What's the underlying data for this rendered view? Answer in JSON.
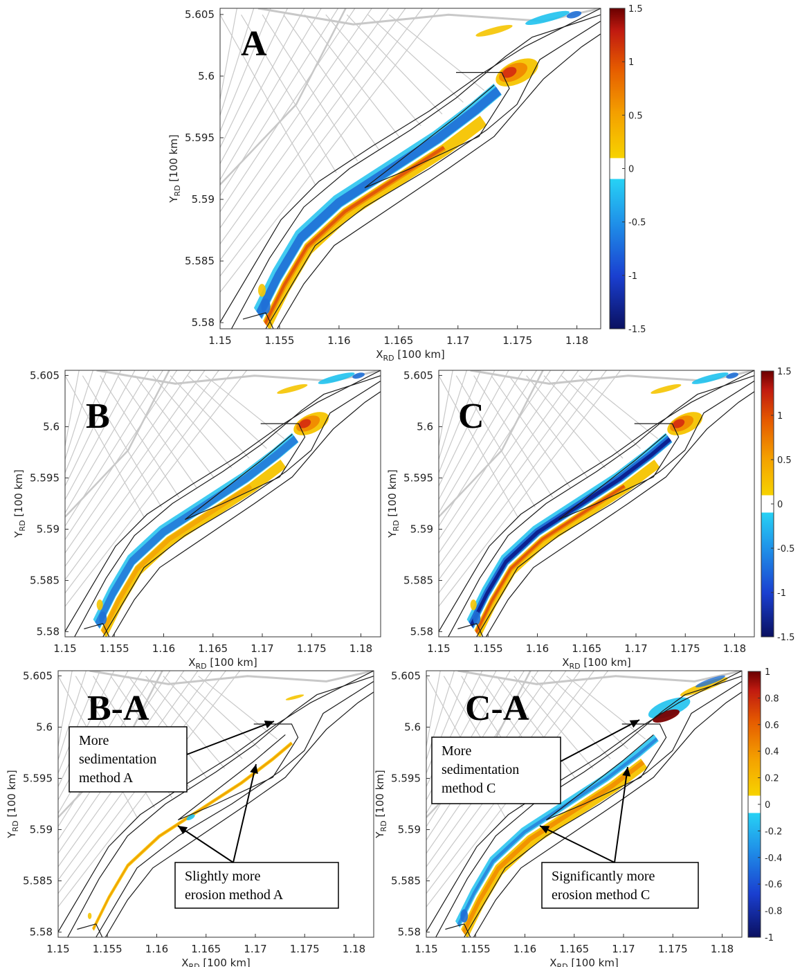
{
  "chart_data": [
    {
      "type": "heatmap",
      "panel_label": "A",
      "xlabel": "X",
      "xlabel_sub": "RD",
      "xlabel_unit": " [100 km]",
      "ylabel": "Y",
      "ylabel_sub": "RD",
      "ylabel_unit": " [100 km]",
      "xlim": [
        1.15,
        1.182
      ],
      "ylim": [
        5.5795,
        5.6055
      ],
      "xticks": [
        "1.15",
        "1.155",
        "1.16",
        "1.165",
        "1.17",
        "1.175",
        "1.18"
      ],
      "yticks": [
        "5.58",
        "5.585",
        "5.59",
        "5.595",
        "5.6",
        "5.605"
      ],
      "colorbar": {
        "min": -1.5,
        "max": 1.5,
        "ticks": [
          "-1.5",
          "-1",
          "-0.5",
          "0",
          "0.5",
          "1",
          "1.5"
        ]
      },
      "annotations": []
    },
    {
      "type": "heatmap",
      "panel_label": "B",
      "xlabel": "X",
      "xlabel_sub": "RD",
      "xlabel_unit": " [100 km]",
      "ylabel": "Y",
      "ylabel_sub": "RD",
      "ylabel_unit": " [100 km]",
      "xlim": [
        1.15,
        1.182
      ],
      "ylim": [
        5.5795,
        5.6055
      ],
      "xticks": [
        "1.15",
        "1.155",
        "1.16",
        "1.165",
        "1.17",
        "1.175",
        "1.18"
      ],
      "yticks": [
        "5.58",
        "5.585",
        "5.59",
        "5.595",
        "5.6",
        "5.605"
      ],
      "annotations": []
    },
    {
      "type": "heatmap",
      "panel_label": "C",
      "xlabel": "X",
      "xlabel_sub": "RD",
      "xlabel_unit": " [100 km]",
      "ylabel": "Y",
      "ylabel_sub": "RD",
      "ylabel_unit": " [100 km]",
      "xlim": [
        1.15,
        1.182
      ],
      "ylim": [
        5.5795,
        5.6055
      ],
      "xticks": [
        "1.15",
        "1.155",
        "1.16",
        "1.165",
        "1.17",
        "1.175",
        "1.18"
      ],
      "yticks": [
        "5.58",
        "5.585",
        "5.59",
        "5.595",
        "5.6",
        "5.605"
      ],
      "colorbar": {
        "min": -1.5,
        "max": 1.5,
        "ticks": [
          "-1.5",
          "-1",
          "-0.5",
          "0",
          "0.5",
          "1",
          "1.5"
        ]
      },
      "annotations": []
    },
    {
      "type": "heatmap",
      "panel_label": "B-A",
      "xlabel": "X",
      "xlabel_sub": "RD",
      "xlabel_unit": " [100 km]",
      "ylabel": "Y",
      "ylabel_sub": "RD",
      "ylabel_unit": " [100 km]",
      "xlim": [
        1.15,
        1.182
      ],
      "ylim": [
        5.5795,
        5.6055
      ],
      "xticks": [
        "1.15",
        "1.155",
        "1.16",
        "1.165",
        "1.17",
        "1.175",
        "1.18"
      ],
      "yticks": [
        "5.58",
        "5.585",
        "5.59",
        "5.595",
        "5.6",
        "5.605"
      ],
      "annotations": [
        {
          "lines": [
            "More",
            "sedimentation",
            "method A"
          ]
        },
        {
          "lines": [
            "Slightly more",
            "erosion method A"
          ]
        }
      ]
    },
    {
      "type": "heatmap",
      "panel_label": "C-A",
      "xlabel": "X",
      "xlabel_sub": "RD",
      "xlabel_unit": " [100 km]",
      "ylabel": "Y",
      "ylabel_sub": "RD",
      "ylabel_unit": " [100 km]",
      "xlim": [
        1.15,
        1.182
      ],
      "ylim": [
        5.5795,
        5.6055
      ],
      "xticks": [
        "1.15",
        "1.155",
        "1.16",
        "1.165",
        "1.17",
        "1.175",
        "1.18"
      ],
      "yticks": [
        "5.58",
        "5.585",
        "5.59",
        "5.595",
        "5.6",
        "5.605"
      ],
      "colorbar": {
        "min": -1,
        "max": 1,
        "ticks": [
          "-1",
          "-0.8",
          "-0.6",
          "-0.4",
          "-0.2",
          "0",
          "0.2",
          "0.4",
          "0.6",
          "0.8",
          "1"
        ]
      },
      "annotations": [
        {
          "lines": [
            "More",
            "sedimentation",
            "method C"
          ]
        },
        {
          "lines": [
            "Significantly more",
            "erosion method C"
          ]
        }
      ]
    }
  ],
  "colors": {
    "map_lines": "#c8c8c8",
    "contour": "#1a1a1a",
    "deep_blue": "#0a1a8a",
    "blue": "#1f6fd6",
    "cyan": "#1fc2ee",
    "white": "#ffffff",
    "yellow": "#f5c400",
    "orange": "#f08a00",
    "red": "#d42a10",
    "dark_red": "#7a0000"
  }
}
